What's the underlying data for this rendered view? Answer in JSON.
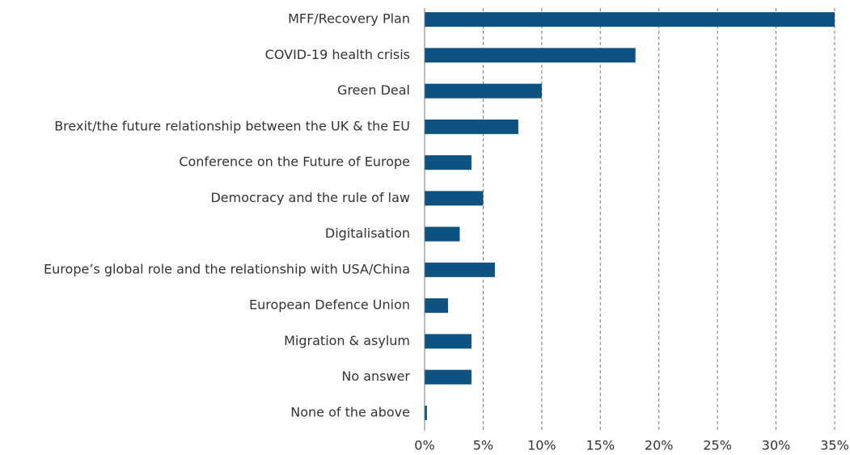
{
  "chart_data": {
    "type": "barh",
    "categories": [
      "MFF/Recovery Plan",
      "COVID-19 health crisis",
      "Green Deal",
      "Brexit/the future relationship between the UK & the EU",
      "Conference on the Future of Europe",
      "Democracy and the rule of law",
      "Digitalisation",
      "Europe’s global role and the relationship with USA/China",
      "European Defence Union",
      "Migration & asylum",
      "No answer",
      "None of the above"
    ],
    "values": [
      35,
      18,
      10,
      8,
      4,
      5,
      3,
      6,
      2,
      4,
      4,
      0.2
    ],
    "color": "#0d5281",
    "xlim": [
      0,
      35
    ],
    "xticks": [
      {
        "value": 0,
        "label": "0%"
      },
      {
        "value": 5,
        "label": "5%"
      },
      {
        "value": 10,
        "label": "10%"
      },
      {
        "value": 15,
        "label": "15%"
      },
      {
        "value": 20,
        "label": "20%"
      },
      {
        "value": 25,
        "label": "25%"
      },
      {
        "value": 30,
        "label": "30%"
      },
      {
        "value": 35,
        "label": "35%"
      }
    ],
    "grid": true
  }
}
